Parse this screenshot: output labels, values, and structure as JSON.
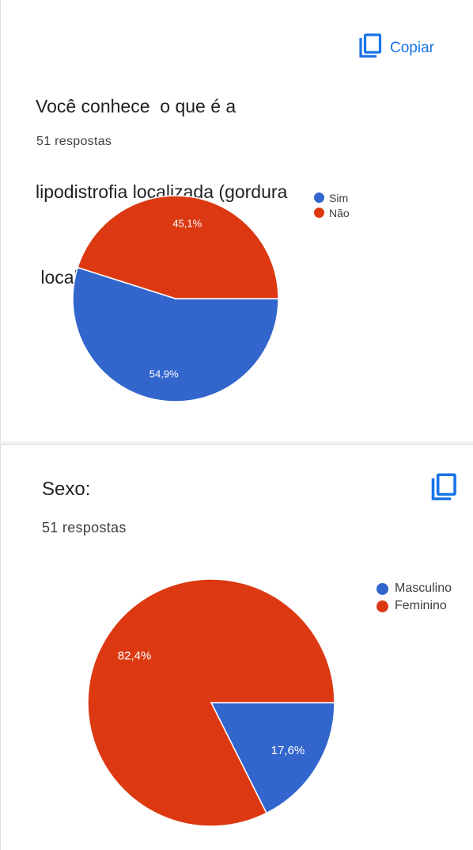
{
  "question1": {
    "title_lines": [
      "Você conhece  o que é a",
      "lipodistrofia localizada (gordura",
      " localizada) e flacidez?"
    ],
    "responses": "51 respostas",
    "copy_label": "Copiar"
  },
  "question2": {
    "title": "Sexo:",
    "responses": "51 respostas"
  },
  "colors": {
    "blue": "#3366cc",
    "red": "#dc3912",
    "accent": "#1a73e8"
  },
  "icons": {
    "copy": "copy-icon"
  },
  "chart_data": [
    {
      "type": "pie",
      "categories": [
        "Sim",
        "Não"
      ],
      "values": [
        54.9,
        45.1
      ],
      "labels": [
        "54,9%",
        "45,1%"
      ],
      "colors": [
        "#3366cc",
        "#dc3912"
      ],
      "legend_position": "top-right"
    },
    {
      "type": "pie",
      "categories": [
        "Masculino",
        "Feminino"
      ],
      "values": [
        17.6,
        82.4
      ],
      "labels": [
        "17,6%",
        "82,4%"
      ],
      "colors": [
        "#3366cc",
        "#dc3912"
      ],
      "legend_position": "top-right"
    }
  ]
}
